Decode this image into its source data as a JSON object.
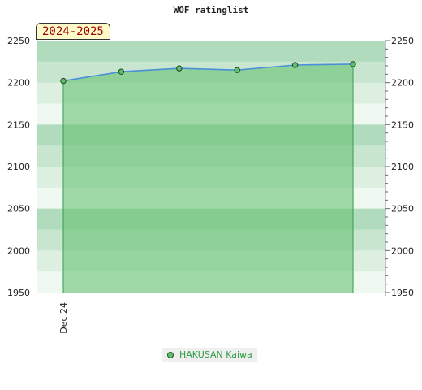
{
  "chart_data": {
    "type": "area",
    "title": "WOF ratinglist",
    "period": "2024-2025",
    "xlabel": "",
    "ylabel": "",
    "x_tick_labels": [
      "Dec 24"
    ],
    "y_ticks": [
      1950,
      2000,
      2050,
      2100,
      2150,
      2200,
      2250
    ],
    "ylim": [
      1950,
      2250
    ],
    "y_axis_both_sides": true,
    "grid": false,
    "legend_position": "bottom-center",
    "series": [
      {
        "name": "HAKUSAN Kaiwa",
        "color": "#5fbf6b",
        "line_color": "#4a90d9",
        "values": [
          2202,
          2213,
          2217,
          2215,
          2221,
          2222
        ]
      }
    ]
  }
}
